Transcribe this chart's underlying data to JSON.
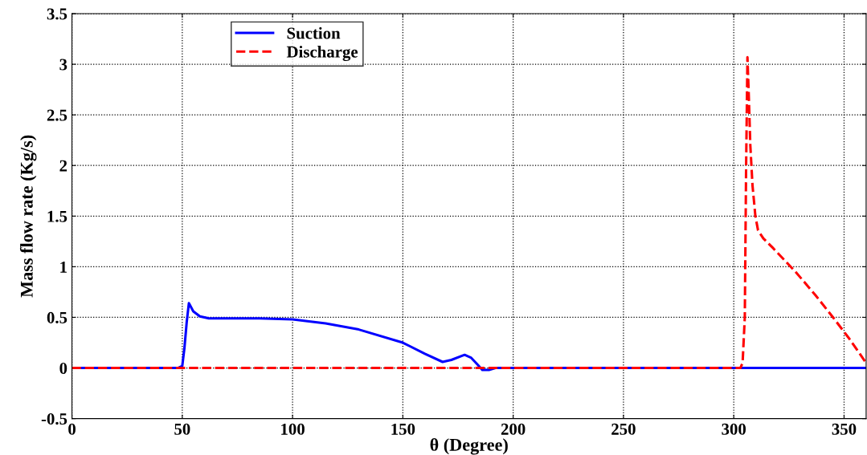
{
  "chart_data": {
    "type": "line",
    "xlabel": "θ (Degree)",
    "ylabel": "Mass flow rate (Kg/s)",
    "xlim": [
      0,
      360
    ],
    "ylim": [
      -0.5,
      3.5
    ],
    "xticks": [
      0,
      50,
      100,
      150,
      200,
      250,
      300,
      350
    ],
    "yticks": [
      -0.5,
      0,
      0.5,
      1,
      1.5,
      2,
      2.5,
      3,
      3.5
    ],
    "grid": true,
    "legend": "top left",
    "series": [
      {
        "name": "Suction",
        "color": "#0000ff",
        "line_style": "solid",
        "x": [
          0,
          48,
          50,
          51,
          52,
          53,
          55,
          58,
          62,
          70,
          85,
          100,
          115,
          130,
          150,
          160,
          168,
          172,
          178,
          181,
          184,
          186,
          189,
          192,
          250,
          300,
          360
        ],
        "values": [
          0,
          0,
          0.02,
          0.2,
          0.45,
          0.64,
          0.56,
          0.51,
          0.49,
          0.49,
          0.49,
          0.48,
          0.44,
          0.38,
          0.25,
          0.14,
          0.06,
          0.08,
          0.13,
          0.1,
          0.03,
          -0.02,
          -0.02,
          0,
          0,
          0,
          0
        ]
      },
      {
        "name": "Discharge",
        "color": "#ff0000",
        "line_style": "dashed",
        "x": [
          0,
          100,
          200,
          303,
          304,
          305,
          305.6,
          306.2,
          306.8,
          307.5,
          308.5,
          309.8,
          311,
          313.4,
          318,
          328,
          337,
          345,
          352,
          360
        ],
        "values": [
          0,
          0,
          0,
          0,
          0.05,
          0.5,
          2,
          3.07,
          2.7,
          2.2,
          1.8,
          1.5,
          1.36,
          1.28,
          1.18,
          0.95,
          0.72,
          0.5,
          0.3,
          0.05
        ]
      }
    ]
  }
}
